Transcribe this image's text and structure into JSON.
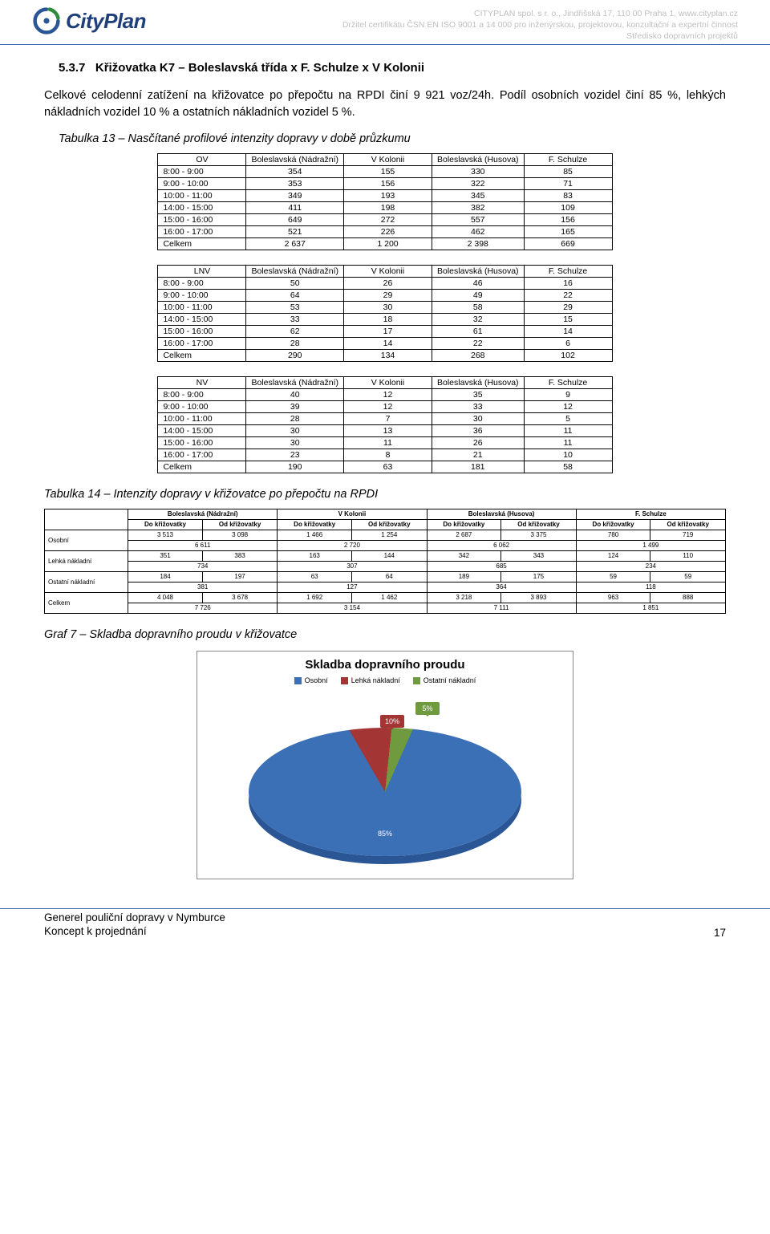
{
  "header": {
    "company": "CityPlan",
    "line1": "CITYPLAN spol. s r. o., Jindřišská 17, 110 00 Praha 1, www.cityplan.cz",
    "line2": "Držitel certifikátu ČSN EN ISO 9001 a 14 000 pro inženýrskou, projektovou, konzultační a expertní činnost",
    "line3": "Středisko dopravních projektů",
    "logo_colors": {
      "swirl": "#2a5696",
      "leaf": "#2e8b3d"
    }
  },
  "section_no": "5.3.7",
  "section_title": "Křižovatka K7 – Boleslavská třída x F. Schulze x V Kolonii",
  "paragraph": "Celkové celodenní zatížení na křižovatce po přepočtu na RPDI činí 9 921 voz/24h. Podíl osobních vozidel činí 85 %, lehkých nákladních vozidel 10 % a ostatních nákladních vozidel 5 %.",
  "table13_caption": "Tabulka 13 – Nasčítané profilové intenzity dopravy v době průzkumu",
  "columns": [
    "Boleslavská (Nádražní)",
    "V Kolonii",
    "Boleslavská (Husova)",
    "F. Schulze"
  ],
  "time_rows": [
    "8:00 - 9:00",
    "9:00 - 10:00",
    "10:00 - 11:00",
    "14:00 - 15:00",
    "15:00 - 16:00",
    "16:00 - 17:00",
    "Celkem"
  ],
  "tableOV": [
    [
      354,
      155,
      330,
      85
    ],
    [
      353,
      156,
      322,
      71
    ],
    [
      349,
      193,
      345,
      83
    ],
    [
      411,
      198,
      382,
      109
    ],
    [
      649,
      272,
      557,
      156
    ],
    [
      521,
      226,
      462,
      165
    ],
    [
      "2 637",
      "1 200",
      "2 398",
      669
    ]
  ],
  "tableLNV": [
    [
      50,
      26,
      46,
      16
    ],
    [
      64,
      29,
      49,
      22
    ],
    [
      53,
      30,
      58,
      29
    ],
    [
      33,
      18,
      32,
      15
    ],
    [
      62,
      17,
      61,
      14
    ],
    [
      28,
      14,
      22,
      6
    ],
    [
      290,
      134,
      268,
      102
    ]
  ],
  "tableNV": [
    [
      40,
      12,
      35,
      9
    ],
    [
      39,
      12,
      33,
      12
    ],
    [
      28,
      7,
      30,
      5
    ],
    [
      30,
      13,
      36,
      11
    ],
    [
      30,
      11,
      26,
      11
    ],
    [
      23,
      8,
      21,
      10
    ],
    [
      190,
      63,
      181,
      58
    ]
  ],
  "table_corners": {
    "ov": "OV",
    "lnv": "LNV",
    "nv": "NV"
  },
  "table14_caption": "Tabulka 14 – Intenzity dopravy v křižovatce po přepočtu na RPDI",
  "table14": {
    "top_headers": [
      "Boleslavská (Nádražní)",
      "V Kolonii",
      "Boleslavská (Husova)",
      "F. Schulze"
    ],
    "sub_headers": [
      "Do křižovatky",
      "Od křižovatky"
    ],
    "row_labels": [
      "Osobní",
      "Lehká nákladní",
      "Ostatní nákladní",
      "Celkem"
    ],
    "rows": [
      {
        "vals": [
          "3 513",
          "3 098",
          "1 466",
          "1 254",
          "2 687",
          "3 375",
          "780",
          "719"
        ],
        "sums": [
          "6 611",
          "2 720",
          "6 062",
          "1 499"
        ]
      },
      {
        "vals": [
          "351",
          "383",
          "163",
          "144",
          "342",
          "343",
          "124",
          "110"
        ],
        "sums": [
          "734",
          "307",
          "685",
          "234"
        ]
      },
      {
        "vals": [
          "184",
          "197",
          "63",
          "64",
          "189",
          "175",
          "59",
          "59"
        ],
        "sums": [
          "381",
          "127",
          "364",
          "118"
        ]
      },
      {
        "vals": [
          "4 048",
          "3 678",
          "1 692",
          "1 462",
          "3 218",
          "3 893",
          "963",
          "888"
        ],
        "sums": [
          "7 726",
          "3 154",
          "7 111",
          "1 851"
        ]
      }
    ]
  },
  "chart_caption": "Graf 7 – Skladba dopravního proudu v křižovatce",
  "chart": {
    "title": "Skladba dopravního proudu",
    "legend": [
      "Osobní",
      "Lehká nákladní",
      "Ostatní nákladní"
    ],
    "values": [
      85,
      10,
      5
    ],
    "labels": [
      "85%",
      "10%",
      "5%"
    ],
    "colors": [
      "#3b6fb6",
      "#a33535",
      "#6f9a3e"
    ],
    "callout_colors": [
      "#3b6fb6",
      "#a33535",
      "#6f9a3e"
    ],
    "bg": "#ffffff"
  },
  "footer": {
    "l1": "Generel pouliční dopravy v Nymburce",
    "l2": "Koncept k projednání",
    "page": "17"
  }
}
